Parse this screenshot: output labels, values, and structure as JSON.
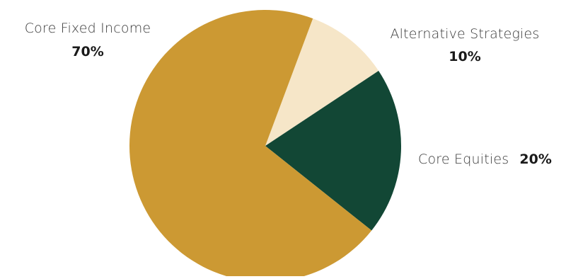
{
  "chart_data": {
    "type": "pie",
    "slices": [
      {
        "label": "Alternative Strategies",
        "value": 10,
        "display": "10%",
        "color": "#f6e6c8"
      },
      {
        "label": "Core Equities",
        "value": 20,
        "display": "20%",
        "color": "#124735"
      },
      {
        "label": "Core Fixed Income",
        "value": 70,
        "display": "70%",
        "color": "#cc9933"
      }
    ]
  }
}
